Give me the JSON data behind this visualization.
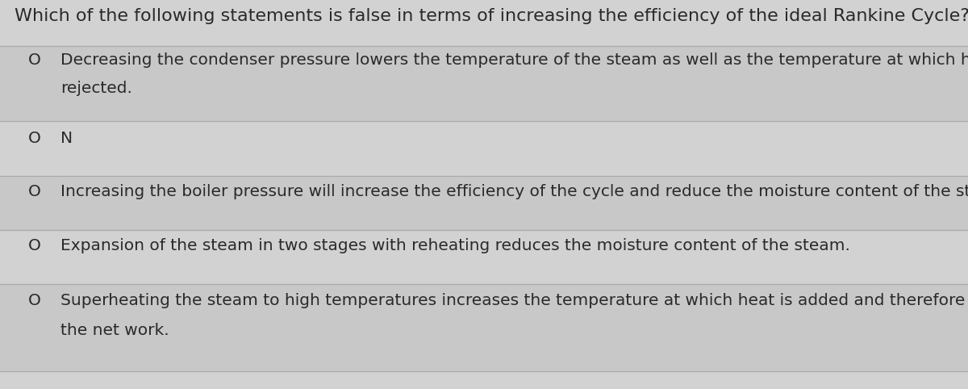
{
  "background_color": "#c8c8c8",
  "row_bg_light": "#d4d4d4",
  "row_bg_dark": "#c4c4c4",
  "title": "Which of the following statements is false in terms of increasing the efficiency of the ideal Rankine Cycle?",
  "title_fontsize": 16,
  "text_color": "#2a2a2a",
  "divider_color": "#aaaaaa",
  "options": [
    {
      "bullet": "O",
      "line1": "Decreasing the condenser pressure lowers the temperature of the steam as well as the temperature at which heat is",
      "line2": "rejected.",
      "two_lines": true
    },
    {
      "bullet": "O",
      "line1": "N",
      "line2": "",
      "two_lines": false
    },
    {
      "bullet": "O",
      "line1": "Increasing the boiler pressure will increase the efficiency of the cycle and reduce the moisture content of the steam.",
      "line2": "",
      "two_lines": false
    },
    {
      "bullet": "O",
      "line1": "Expansion of the steam in two stages with reheating reduces the moisture content of the steam.",
      "line2": "",
      "two_lines": false
    },
    {
      "bullet": "O",
      "line1": "Superheating the steam to high temperatures increases the temperature at which heat is added and therefore increases",
      "line2": "the net work.",
      "two_lines": true
    }
  ],
  "figwidth": 12.0,
  "figheight": 4.82,
  "dpi": 100
}
